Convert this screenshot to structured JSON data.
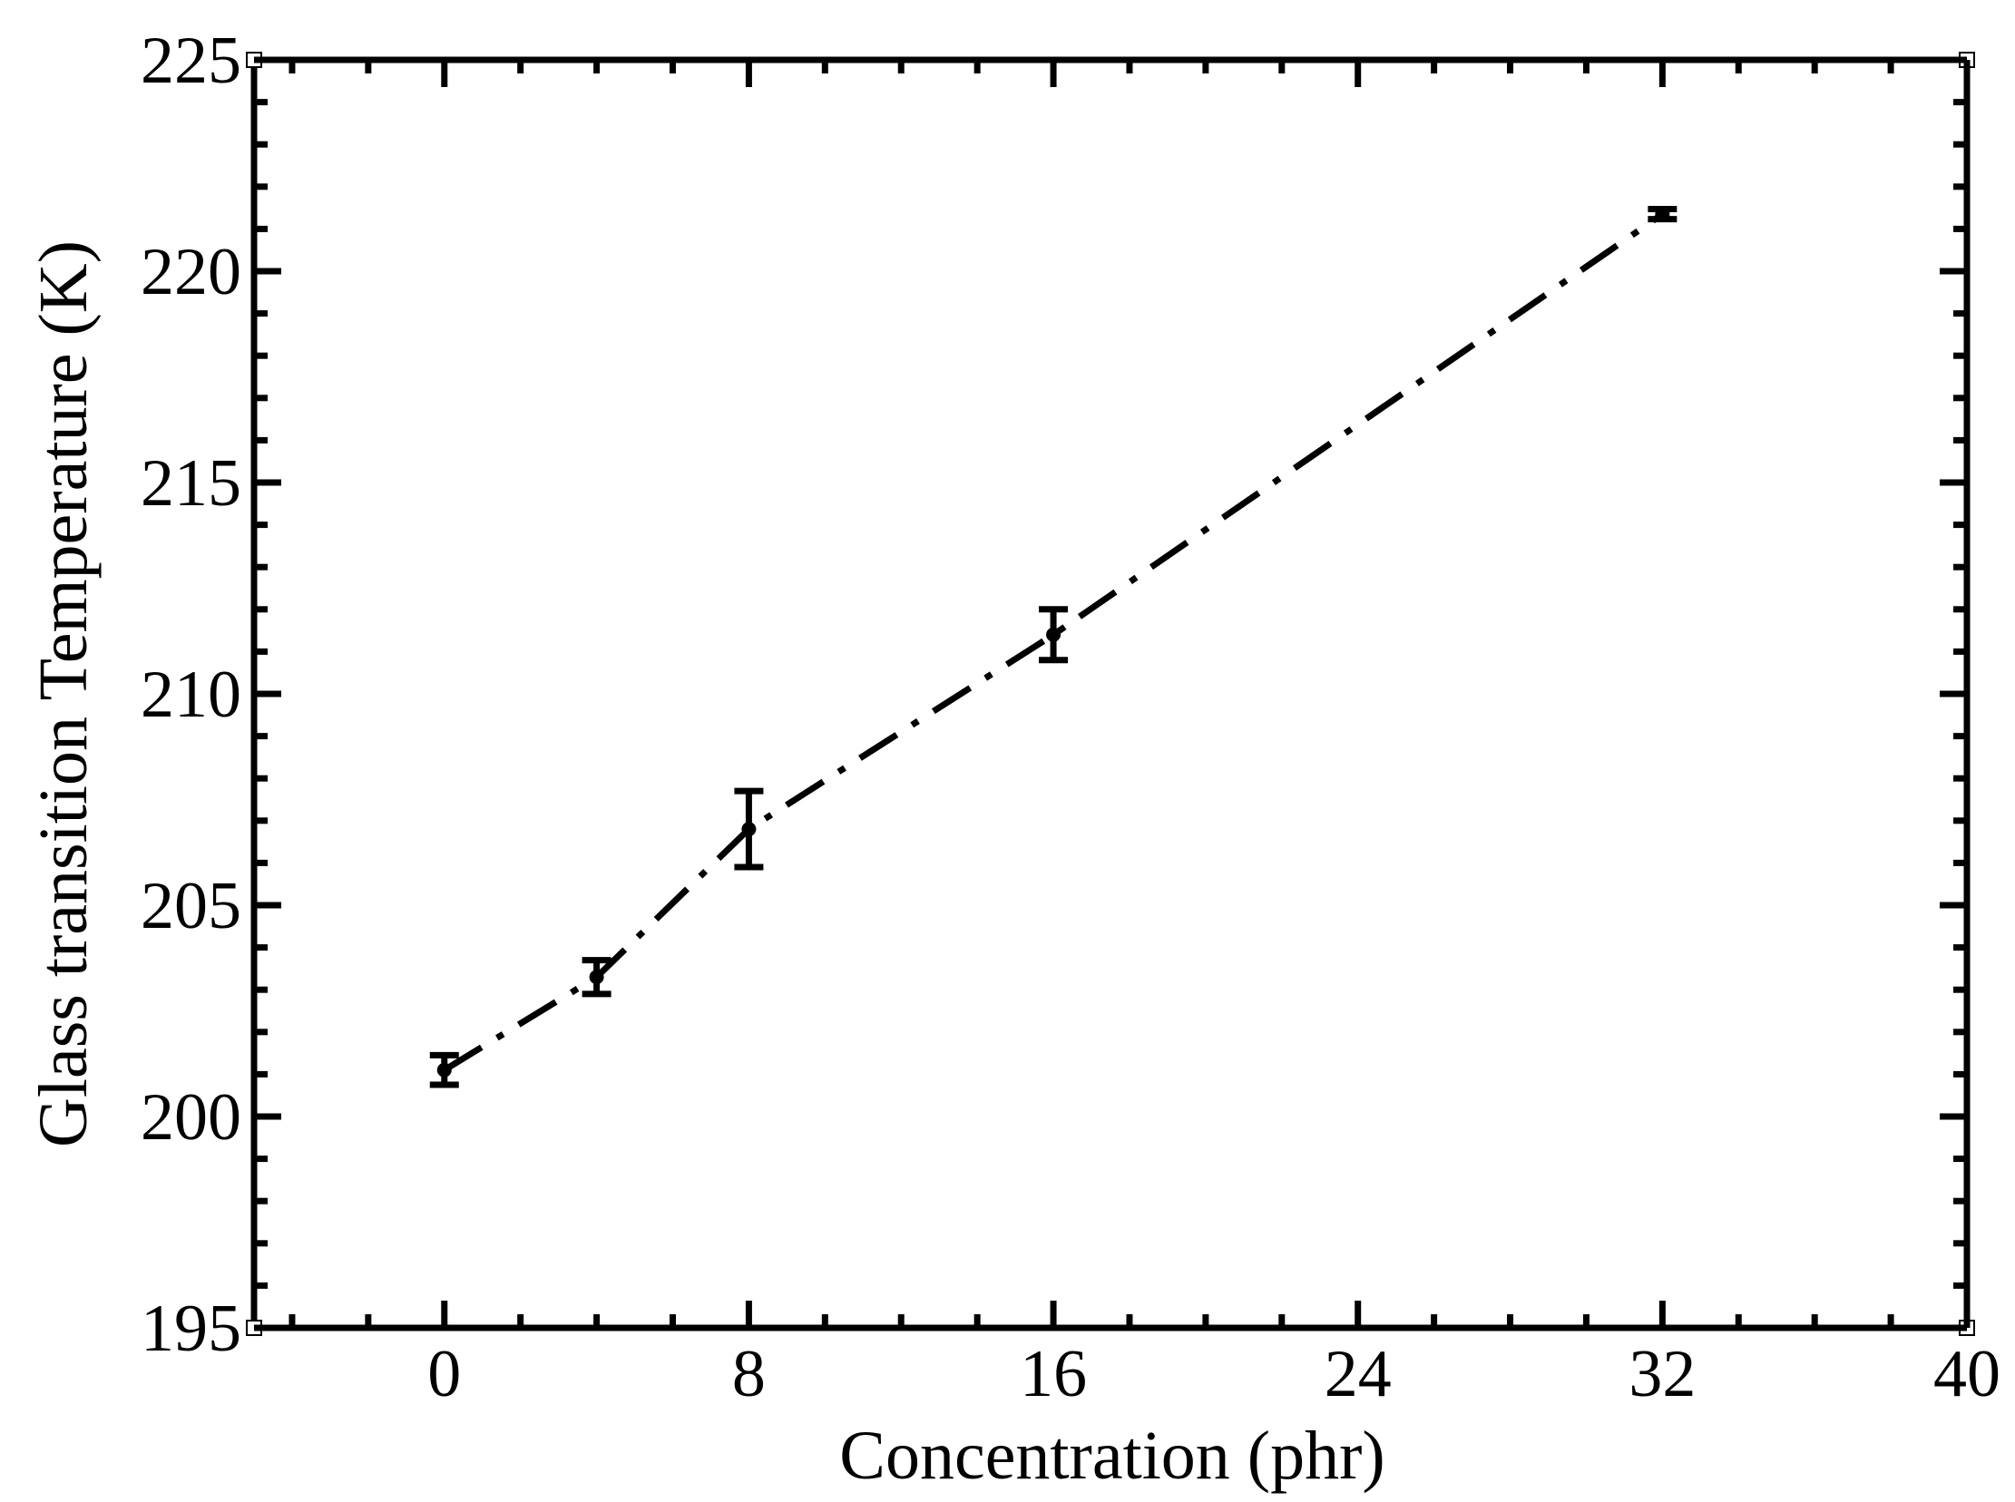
{
  "chart_data": {
    "type": "scatter",
    "title": "",
    "xlabel": "Concentration (phr)",
    "ylabel": "Glass transition Temperature (K)",
    "xlim": [
      -5,
      40
    ],
    "ylim": [
      195,
      225
    ],
    "x_ticks": [
      0,
      8,
      16,
      24,
      32,
      40
    ],
    "y_ticks": [
      195,
      200,
      205,
      210,
      215,
      220,
      225
    ],
    "x_minor_step": 2,
    "y_minor_step": 1,
    "grid": false,
    "series": [
      {
        "line_style": "dash-dot",
        "color": "#000000",
        "points": [
          {
            "x": 0,
            "y": 201.1,
            "err": 0.35
          },
          {
            "x": 4,
            "y": 203.3,
            "err": 0.4
          },
          {
            "x": 8,
            "y": 206.8,
            "err": 0.9
          },
          {
            "x": 16,
            "y": 211.4,
            "err": 0.6
          },
          {
            "x": 32,
            "y": 221.35,
            "err": 0.12
          }
        ]
      }
    ]
  }
}
